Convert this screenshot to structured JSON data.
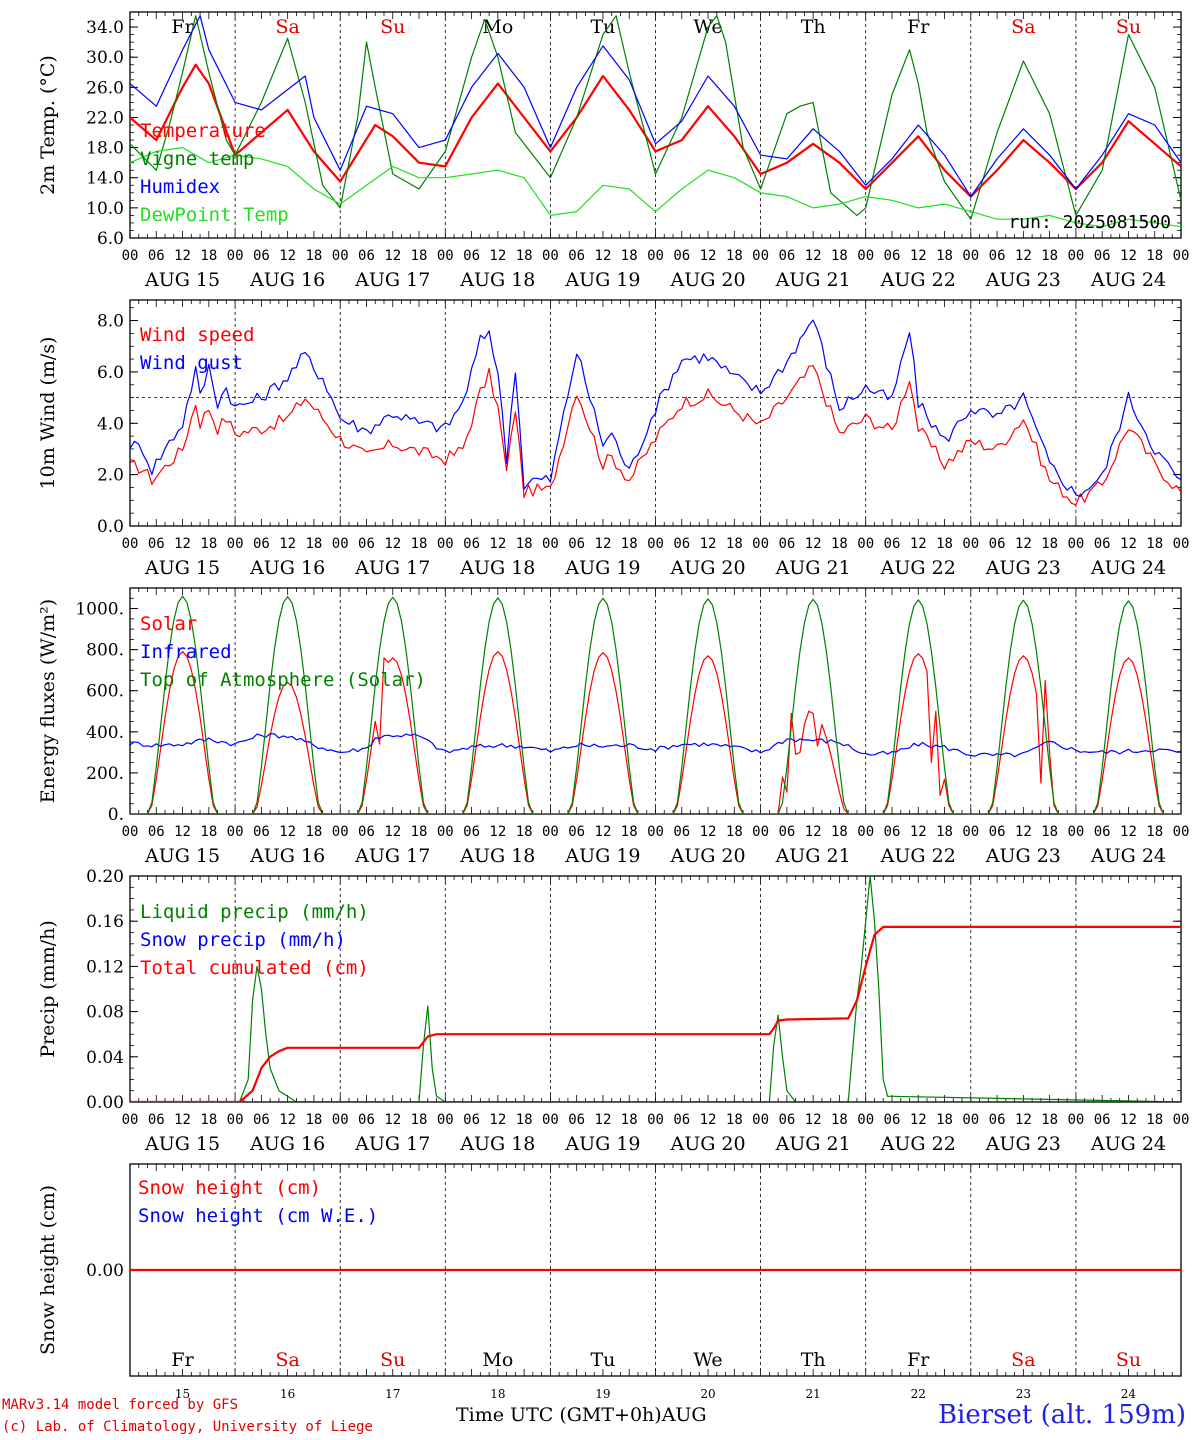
{
  "colors": {
    "red": "#ff0000",
    "blue": "#0000ff",
    "green": "#008000",
    "lightgreen": "#20e020",
    "dayRed": "#e00000"
  },
  "days": {
    "weekday": [
      "Fr",
      "Sa",
      "Su",
      "Mo",
      "Tu",
      "We",
      "Th",
      "Fr",
      "Sa",
      "Su"
    ],
    "weekend": [
      false,
      true,
      true,
      false,
      false,
      false,
      false,
      false,
      true,
      true
    ],
    "dates": [
      "AUG 15",
      "AUG 16",
      "AUG 17",
      "AUG 18",
      "AUG 19",
      "AUG 20",
      "AUG 21",
      "AUG 22",
      "AUG 23",
      "AUG 24"
    ],
    "daynum": [
      "15",
      "16",
      "17",
      "18",
      "19",
      "20",
      "21",
      "22",
      "23",
      "24"
    ],
    "hour_labels": [
      "00",
      "06",
      "12",
      "18"
    ],
    "final_hour": "00"
  },
  "chart_data": [
    {
      "type": "line",
      "ylabel": "2m Temp. (°C)",
      "ylim": [
        6,
        36
      ],
      "yticks": [
        "6.0",
        "10.0",
        "14.0",
        "18.0",
        "22.0",
        "26.0",
        "30.0",
        "34.0"
      ],
      "annotation": "run: 2025081500",
      "x_unit": "hours since AUG 15 00 UTC",
      "series": [
        {
          "name": "Temperature",
          "color": "#ff0000",
          "x": [
            0,
            6,
            12,
            15,
            18,
            24,
            30,
            36,
            42,
            48,
            56,
            60,
            66,
            72,
            78,
            84,
            90,
            96,
            102,
            108,
            114,
            120,
            126,
            132,
            138,
            144,
            150,
            156,
            162,
            168,
            174,
            180,
            186,
            192,
            198,
            204,
            210,
            216,
            222,
            228,
            234,
            240
          ],
          "y": [
            22.0,
            19.0,
            26.0,
            29.0,
            26.5,
            17.0,
            20.0,
            23.0,
            17.5,
            13.5,
            21.0,
            19.5,
            16.0,
            15.5,
            22.0,
            26.5,
            22.0,
            17.5,
            22.0,
            27.5,
            23.0,
            17.5,
            19.0,
            23.5,
            19.5,
            14.5,
            16.0,
            18.5,
            16.0,
            12.5,
            16.0,
            19.5,
            15.0,
            11.5,
            15.0,
            19.0,
            16.0,
            12.5,
            16.0,
            21.5,
            18.5,
            15.5
          ]
        },
        {
          "name": "Vigne temp",
          "color": "#008000",
          "x": [
            0,
            6,
            9,
            12,
            15,
            18,
            22,
            24,
            30,
            36,
            40,
            44,
            48,
            52,
            54,
            56,
            60,
            66,
            72,
            78,
            81,
            84,
            88,
            96,
            102,
            108,
            111,
            114,
            120,
            126,
            132,
            134,
            136,
            140,
            144,
            150,
            153,
            156,
            158,
            160,
            162,
            166,
            168,
            174,
            178,
            180,
            182,
            186,
            192,
            198,
            204,
            210,
            216,
            222,
            228,
            234,
            240
          ],
          "y": [
            18.5,
            15.0,
            21.0,
            28.0,
            35.5,
            28.0,
            19.0,
            17.0,
            24.0,
            32.5,
            24.0,
            13.0,
            10.0,
            22.0,
            32.0,
            26.0,
            14.5,
            12.5,
            17.5,
            30.0,
            35.0,
            30.0,
            20.0,
            14.0,
            22.0,
            33.0,
            35.5,
            28.0,
            14.5,
            22.0,
            34.0,
            35.5,
            32.0,
            18.0,
            12.5,
            22.5,
            23.5,
            24.0,
            18.0,
            12.0,
            11.0,
            9.0,
            10.0,
            25.0,
            31.0,
            26.5,
            20.0,
            13.5,
            8.5,
            20.0,
            29.5,
            22.5,
            9.0,
            15.0,
            33.0,
            26.0,
            11.0
          ]
        },
        {
          "name": "Humidex",
          "color": "#0000ff",
          "x": [
            0,
            6,
            12,
            16,
            18,
            24,
            30,
            40,
            42,
            48,
            54,
            60,
            66,
            72,
            78,
            84,
            90,
            96,
            102,
            108,
            114,
            120,
            126,
            132,
            138,
            144,
            150,
            156,
            162,
            168,
            174,
            180,
            186,
            192,
            198,
            204,
            210,
            216,
            222,
            228,
            234,
            240
          ],
          "y": [
            26.5,
            23.5,
            31.0,
            35.5,
            31.0,
            24.0,
            23.0,
            27.5,
            22.0,
            15.0,
            23.5,
            22.5,
            18.0,
            19.0,
            26.0,
            30.5,
            26.0,
            18.0,
            26.0,
            31.5,
            27.0,
            18.5,
            21.5,
            27.5,
            23.5,
            17.0,
            16.5,
            20.5,
            17.5,
            13.0,
            16.5,
            21.0,
            17.0,
            11.5,
            16.5,
            20.5,
            17.0,
            12.5,
            17.0,
            22.5,
            21.0,
            16.0
          ]
        },
        {
          "name": "DewPoint Temp",
          "color": "#20e020",
          "x": [
            0,
            6,
            12,
            18,
            24,
            30,
            36,
            42,
            48,
            54,
            60,
            66,
            72,
            78,
            84,
            90,
            96,
            102,
            108,
            114,
            120,
            126,
            132,
            138,
            144,
            150,
            156,
            162,
            168,
            174,
            180,
            186,
            192,
            198,
            204,
            210,
            216,
            222,
            228,
            234,
            240
          ],
          "y": [
            16.0,
            17.5,
            18.0,
            16.0,
            17.0,
            16.5,
            15.5,
            12.5,
            10.5,
            13.0,
            15.5,
            14.0,
            14.0,
            14.5,
            15.0,
            14.0,
            9.0,
            9.5,
            13.0,
            12.5,
            9.5,
            12.5,
            15.0,
            14.0,
            12.0,
            11.5,
            10.0,
            10.5,
            11.5,
            11.0,
            10.0,
            10.5,
            9.5,
            8.5,
            8.5,
            9.0,
            8.0,
            7.5,
            8.5,
            8.0,
            7.5
          ]
        }
      ]
    },
    {
      "type": "line",
      "ylabel": "10m Wind (m/s)",
      "ylim": [
        0,
        8.8
      ],
      "yticks": [
        "0.0",
        "2.0",
        "4.0",
        "6.0",
        "8.0"
      ],
      "reference_line": 5.0,
      "x_unit": "hours since AUG 15 00 UTC",
      "series": [
        {
          "name": "Wind speed",
          "color": "#ff0000",
          "x": [
            0,
            3,
            5,
            8,
            12,
            15,
            16,
            18,
            20,
            22,
            24,
            30,
            36,
            40,
            42,
            44,
            48,
            54,
            60,
            66,
            72,
            76,
            80,
            82,
            84,
            86,
            88,
            90,
            92,
            96,
            102,
            108,
            110,
            114,
            120,
            126,
            132,
            138,
            144,
            150,
            156,
            162,
            168,
            174,
            178,
            180,
            186,
            192,
            198,
            204,
            210,
            216,
            222,
            228,
            234,
            240
          ],
          "y": [
            2.4,
            2.2,
            1.8,
            2.3,
            3.0,
            4.8,
            4.0,
            4.6,
            3.8,
            4.2,
            3.6,
            3.8,
            4.2,
            5.0,
            4.6,
            4.2,
            3.4,
            2.7,
            3.2,
            2.9,
            2.6,
            3.0,
            5.2,
            5.9,
            4.6,
            2.1,
            4.6,
            1.3,
            1.4,
            1.4,
            5.3,
            2.4,
            2.7,
            1.8,
            3.4,
            4.8,
            5.1,
            4.5,
            3.9,
            5.0,
            6.2,
            3.6,
            4.2,
            3.7,
            5.8,
            3.8,
            2.4,
            3.3,
            3.0,
            4.2,
            1.8,
            0.9,
            1.6,
            3.9,
            2.4,
            1.3
          ]
        },
        {
          "name": "Wind gust",
          "color": "#0000ff",
          "x": [
            0,
            3,
            5,
            8,
            12,
            15,
            16,
            18,
            20,
            22,
            24,
            30,
            36,
            40,
            42,
            44,
            48,
            54,
            60,
            66,
            72,
            76,
            80,
            82,
            84,
            86,
            88,
            90,
            92,
            96,
            102,
            108,
            110,
            114,
            120,
            126,
            132,
            138,
            144,
            150,
            156,
            162,
            168,
            174,
            178,
            180,
            186,
            192,
            198,
            204,
            210,
            216,
            222,
            228,
            234,
            240
          ],
          "y": [
            3.2,
            3.0,
            2.2,
            3.0,
            4.0,
            6.1,
            5.0,
            6.2,
            4.8,
            5.4,
            4.6,
            5.0,
            5.8,
            6.7,
            6.1,
            5.8,
            4.2,
            3.7,
            4.4,
            4.0,
            3.8,
            4.8,
            7.2,
            7.6,
            6.0,
            2.6,
            6.2,
            1.6,
            1.8,
            1.8,
            6.8,
            3.2,
            3.6,
            2.1,
            4.6,
            6.5,
            6.6,
            5.8,
            5.2,
            6.4,
            8.1,
            4.6,
            5.4,
            4.9,
            7.6,
            4.8,
            3.3,
            4.6,
            4.2,
            5.0,
            2.4,
            1.2,
            1.9,
            5.0,
            3.0,
            1.7
          ]
        }
      ]
    },
    {
      "type": "line",
      "ylabel": "Energy fluxes (W/m²)",
      "ylim": [
        0,
        1100
      ],
      "yticks": [
        "0.",
        "200.",
        "400.",
        "600.",
        "800.",
        "1000."
      ],
      "x_unit": "hours since AUG 15 00 UTC",
      "diurnal": {
        "sunrise_hour": 4.5,
        "sunset_hour": 19.5
      },
      "series": [
        {
          "name": "Solar",
          "color": "#ff0000",
          "daily_peak": [
            790,
            640,
            760,
            790,
            785,
            770,
            490,
            780,
            770,
            760
          ],
          "dips": [
            [
              56.5,
              340
            ],
            [
              57.5,
              760
            ],
            [
              149,
              180
            ],
            [
              151,
              490
            ],
            [
              152.5,
              300
            ],
            [
              155,
              500
            ],
            [
              157,
              330
            ],
            [
              182.5,
              250
            ],
            [
              183.5,
              500
            ],
            [
              185,
              90
            ],
            [
              208,
              150
            ],
            [
              209,
              650
            ],
            [
              210,
              300
            ]
          ]
        },
        {
          "name": "Infrared",
          "color": "#0000ff",
          "x": [
            0,
            6,
            12,
            18,
            24,
            30,
            36,
            42,
            48,
            54,
            56,
            60,
            66,
            72,
            78,
            84,
            90,
            96,
            102,
            108,
            114,
            120,
            126,
            132,
            138,
            144,
            150,
            156,
            162,
            168,
            174,
            180,
            186,
            192,
            198,
            204,
            210,
            216,
            222,
            228,
            234,
            240
          ],
          "y": [
            345,
            335,
            340,
            365,
            340,
            385,
            380,
            335,
            300,
            320,
            370,
            385,
            380,
            300,
            325,
            335,
            330,
            305,
            335,
            330,
            335,
            315,
            340,
            340,
            325,
            300,
            365,
            360,
            350,
            290,
            295,
            340,
            325,
            290,
            285,
            290,
            350,
            310,
            300,
            305,
            315,
            300
          ]
        },
        {
          "name": "Top of Atmosphere (Solar)",
          "color": "#008000",
          "daily_peak": [
            1060,
            1058,
            1055,
            1052,
            1050,
            1047,
            1045,
            1042,
            1040,
            1037
          ]
        }
      ]
    },
    {
      "type": "line",
      "ylabel": "Precip (mm/h)",
      "ylim": [
        0,
        0.2
      ],
      "yticks": [
        "0.00",
        "0.04",
        "0.08",
        "0.12",
        "0.16",
        "0.20"
      ],
      "x_unit": "hours since AUG 15 00 UTC",
      "series": [
        {
          "name": "Liquid precip (mm/h)",
          "color": "#008000",
          "x": [
            0,
            25,
            27,
            28,
            29,
            30,
            31,
            32,
            33,
            34,
            36,
            38,
            40,
            66,
            67,
            68,
            69,
            70,
            72,
            146,
            147,
            148,
            149,
            150,
            152,
            164,
            166,
            167,
            168,
            169,
            170,
            171,
            172,
            173,
            174,
            240
          ],
          "y": [
            0,
            0,
            0.02,
            0.09,
            0.12,
            0.1,
            0.06,
            0.03,
            0.02,
            0.01,
            0.005,
            0,
            0,
            0,
            0.05,
            0.085,
            0.03,
            0.005,
            0,
            0,
            0.05,
            0.077,
            0.04,
            0.01,
            0,
            0,
            0.09,
            0.12,
            0.16,
            0.2,
            0.16,
            0.1,
            0.02,
            0.005,
            0.005,
            0
          ]
        },
        {
          "name": "Snow precip (mm/h)",
          "color": "#0000ff",
          "x": [
            0,
            240
          ],
          "y": [
            0,
            0
          ]
        },
        {
          "name": "Total cumulated (cm)",
          "color": "#ff0000",
          "x": [
            0,
            25,
            28,
            30,
            32,
            34,
            36,
            40,
            66,
            68,
            70,
            146,
            147,
            148,
            150,
            164,
            166,
            168,
            170,
            172,
            240
          ],
          "y": [
            0,
            0,
            0.01,
            0.03,
            0.04,
            0.045,
            0.048,
            0.048,
            0.048,
            0.058,
            0.06,
            0.06,
            0.065,
            0.072,
            0.073,
            0.074,
            0.09,
            0.12,
            0.148,
            0.155,
            0.155
          ]
        }
      ]
    },
    {
      "type": "line",
      "ylabel": "Snow height (cm)",
      "ylim": [
        -1,
        1
      ],
      "yticks": [
        "0.00"
      ],
      "x_unit": "hours since AUG 15 00 UTC",
      "series": [
        {
          "name": "Snow height (cm)",
          "color": "#ff0000",
          "x": [
            0,
            240
          ],
          "y": [
            0,
            0
          ]
        },
        {
          "name": "Snow height (cm W.E.)",
          "color": "#0000ff"
        }
      ]
    }
  ],
  "footer": {
    "model": "MARv3.14 model forced by GFS",
    "credit": "(c) Lab. of Climatology, University of Liege",
    "xlabel": "Time UTC (GMT+0h)",
    "month": "AUG",
    "station": "Bierset (alt. 159m)"
  }
}
